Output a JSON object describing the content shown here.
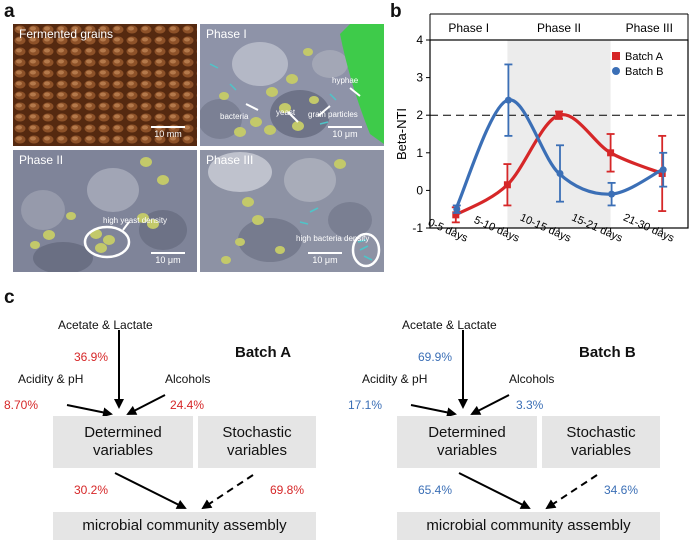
{
  "panel_labels": {
    "a": "a",
    "b": "b",
    "c": "c"
  },
  "panel_a": {
    "tiles": [
      {
        "title": "Fermented grains",
        "scale": "10 mm"
      },
      {
        "title": "Phase I",
        "scale": "10 μm"
      },
      {
        "title": "Phase II",
        "scale": "10 μm"
      },
      {
        "title": "Phase III",
        "scale": "10 μm"
      }
    ],
    "annotations": {
      "bacteria": "bacteria",
      "yeast": "yeast",
      "grain_particles": "grain particles",
      "hyphae": "hyphae",
      "high_yeast": "high yeast density",
      "high_bacteria": "high bacteria density"
    }
  },
  "chart_data": {
    "type": "line",
    "title": "",
    "xlabel": "",
    "ylabel": "Beta-NTI",
    "categories": [
      "0-5 days",
      "5-10 days",
      "10-15 days",
      "15-21 days",
      "21-30 days"
    ],
    "phases": [
      "Phase I",
      "Phase II",
      "Phase III"
    ],
    "ylim": [
      -1,
      4
    ],
    "yticks": [
      -1,
      0,
      1,
      2,
      3,
      4
    ],
    "threshold": 2,
    "legend_position": "top-right",
    "series": [
      {
        "name": "Batch A",
        "color": "#d62728",
        "marker": "square",
        "values": [
          -0.65,
          0.15,
          2.0,
          1.0,
          0.45
        ],
        "errors": [
          0.2,
          0.55,
          0.1,
          0.5,
          1.0
        ]
      },
      {
        "name": "Batch B",
        "color": "#3b6fb6",
        "marker": "circle",
        "values": [
          -0.5,
          2.4,
          0.45,
          -0.1,
          0.55
        ],
        "errors": [
          0.1,
          0.95,
          0.75,
          0.3,
          0.45
        ]
      }
    ]
  },
  "panel_c": {
    "batch_a": {
      "title": "Batch A",
      "acetate_label": "Acetate & Lactate",
      "acetate_pct": "36.9%",
      "acidity_label": "Acidity & pH",
      "acidity_pct": "8.70%",
      "alcohols_label": "Alcohols",
      "alcohols_pct": "24.4%",
      "determined": "Determined variables",
      "stochastic": "Stochastic variables",
      "determined_pct": "30.2%",
      "stochastic_pct": "69.8%",
      "assembly": "microbial community assembly"
    },
    "batch_b": {
      "title": "Batch B",
      "acetate_label": "Acetate & Lactate",
      "acetate_pct": "69.9%",
      "acidity_label": "Acidity & pH",
      "acidity_pct": "17.1%",
      "alcohols_label": "Alcohols",
      "alcohols_pct": "3.3%",
      "determined": "Determined variables",
      "stochastic": "Stochastic variables",
      "determined_pct": "65.4%",
      "stochastic_pct": "34.6%",
      "assembly": "microbial community assembly"
    }
  }
}
